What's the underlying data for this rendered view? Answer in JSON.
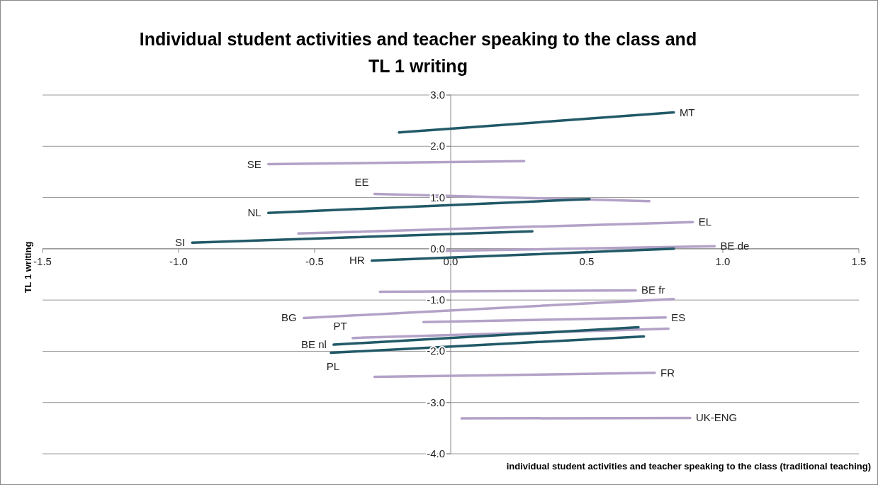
{
  "chart_data": {
    "type": "line",
    "title": "Individual student activities and teacher speaking to the class and TL 1 writing",
    "xlabel": "individual student activities and teacher speaking to the class (traditional teaching)",
    "ylabel": "TL 1 writing",
    "xlim": [
      -1.5,
      1.5
    ],
    "xticks": [
      -1.5,
      {
        "value": -1,
        "label": "-1.0"
      },
      -0.5,
      {
        "value": 0,
        "label": "0.0"
      },
      0.5,
      {
        "value": 1,
        "label": "1.0"
      },
      1.5
    ],
    "ylim": [
      -4,
      3
    ],
    "yticks": [
      {
        "value": -4,
        "label": "-4.0"
      },
      {
        "value": -3,
        "label": "-3.0"
      },
      {
        "value": -2,
        "label": "-2.0"
      },
      {
        "value": -1,
        "label": "-1.0"
      },
      {
        "value": 0,
        "label": "0.0"
      },
      {
        "value": 1,
        "label": "1.0"
      },
      {
        "value": 2,
        "label": "2.0"
      },
      {
        "value": 3,
        "label": "3.0"
      }
    ],
    "grid": "y",
    "marker": "none",
    "line_style": "solid",
    "series": [
      {
        "name": "MT",
        "color": "#215967",
        "x": [
          -0.19,
          0.82
        ],
        "values": [
          2.27,
          2.66
        ]
      },
      {
        "name": "SE",
        "color": "#b3a2c7",
        "x": [
          -0.67,
          0.27
        ],
        "values": [
          1.65,
          1.71
        ]
      },
      {
        "name": "EE",
        "color": "#b3a2c7",
        "x": [
          -0.28,
          0.73
        ],
        "values": [
          1.07,
          0.93
        ]
      },
      {
        "name": "NL",
        "color": "#215967",
        "x": [
          -0.67,
          0.51
        ],
        "values": [
          0.7,
          0.97
        ]
      },
      {
        "name": "EL",
        "color": "#b3a2c7",
        "x": [
          -0.56,
          0.89
        ],
        "values": [
          0.3,
          0.52
        ]
      },
      {
        "name": "SI",
        "color": "#215967",
        "x": [
          -0.95,
          0.3
        ],
        "values": [
          0.12,
          0.34
        ]
      },
      {
        "name": "BE de",
        "color": "#b3a2c7",
        "x": [
          -0.02,
          0.97
        ],
        "values": [
          -0.04,
          0.05
        ]
      },
      {
        "name": "HR",
        "color": "#215967",
        "x": [
          -0.29,
          0.82
        ],
        "values": [
          -0.23,
          0.0
        ]
      },
      {
        "name": "BE fr",
        "color": "#b3a2c7",
        "x": [
          -0.26,
          0.68
        ],
        "values": [
          -0.84,
          -0.81
        ]
      },
      {
        "name": "BG",
        "color": "#b3a2c7",
        "x": [
          -0.54,
          0.82
        ],
        "values": [
          -1.35,
          -0.98
        ]
      },
      {
        "name": "ES",
        "color": "#b3a2c7",
        "x": [
          -0.1,
          0.79
        ],
        "values": [
          -1.43,
          -1.34
        ]
      },
      {
        "name": "PT",
        "color": "#b3a2c7",
        "x": [
          -0.36,
          0.8
        ],
        "values": [
          -1.74,
          -1.56
        ]
      },
      {
        "name": "BE nl",
        "color": "#215967",
        "x": [
          -0.43,
          0.69
        ],
        "values": [
          -1.87,
          -1.53
        ]
      },
      {
        "name": "PL",
        "color": "#215967",
        "x": [
          -0.44,
          0.71
        ],
        "values": [
          -2.03,
          -1.71
        ]
      },
      {
        "name": "FR",
        "color": "#b3a2c7",
        "x": [
          -0.28,
          0.75
        ],
        "values": [
          -2.5,
          -2.42
        ]
      },
      {
        "name": "UK-ENG",
        "color": "#b3a2c7",
        "x": [
          0.04,
          0.88
        ],
        "values": [
          -3.31,
          -3.3
        ]
      }
    ]
  }
}
